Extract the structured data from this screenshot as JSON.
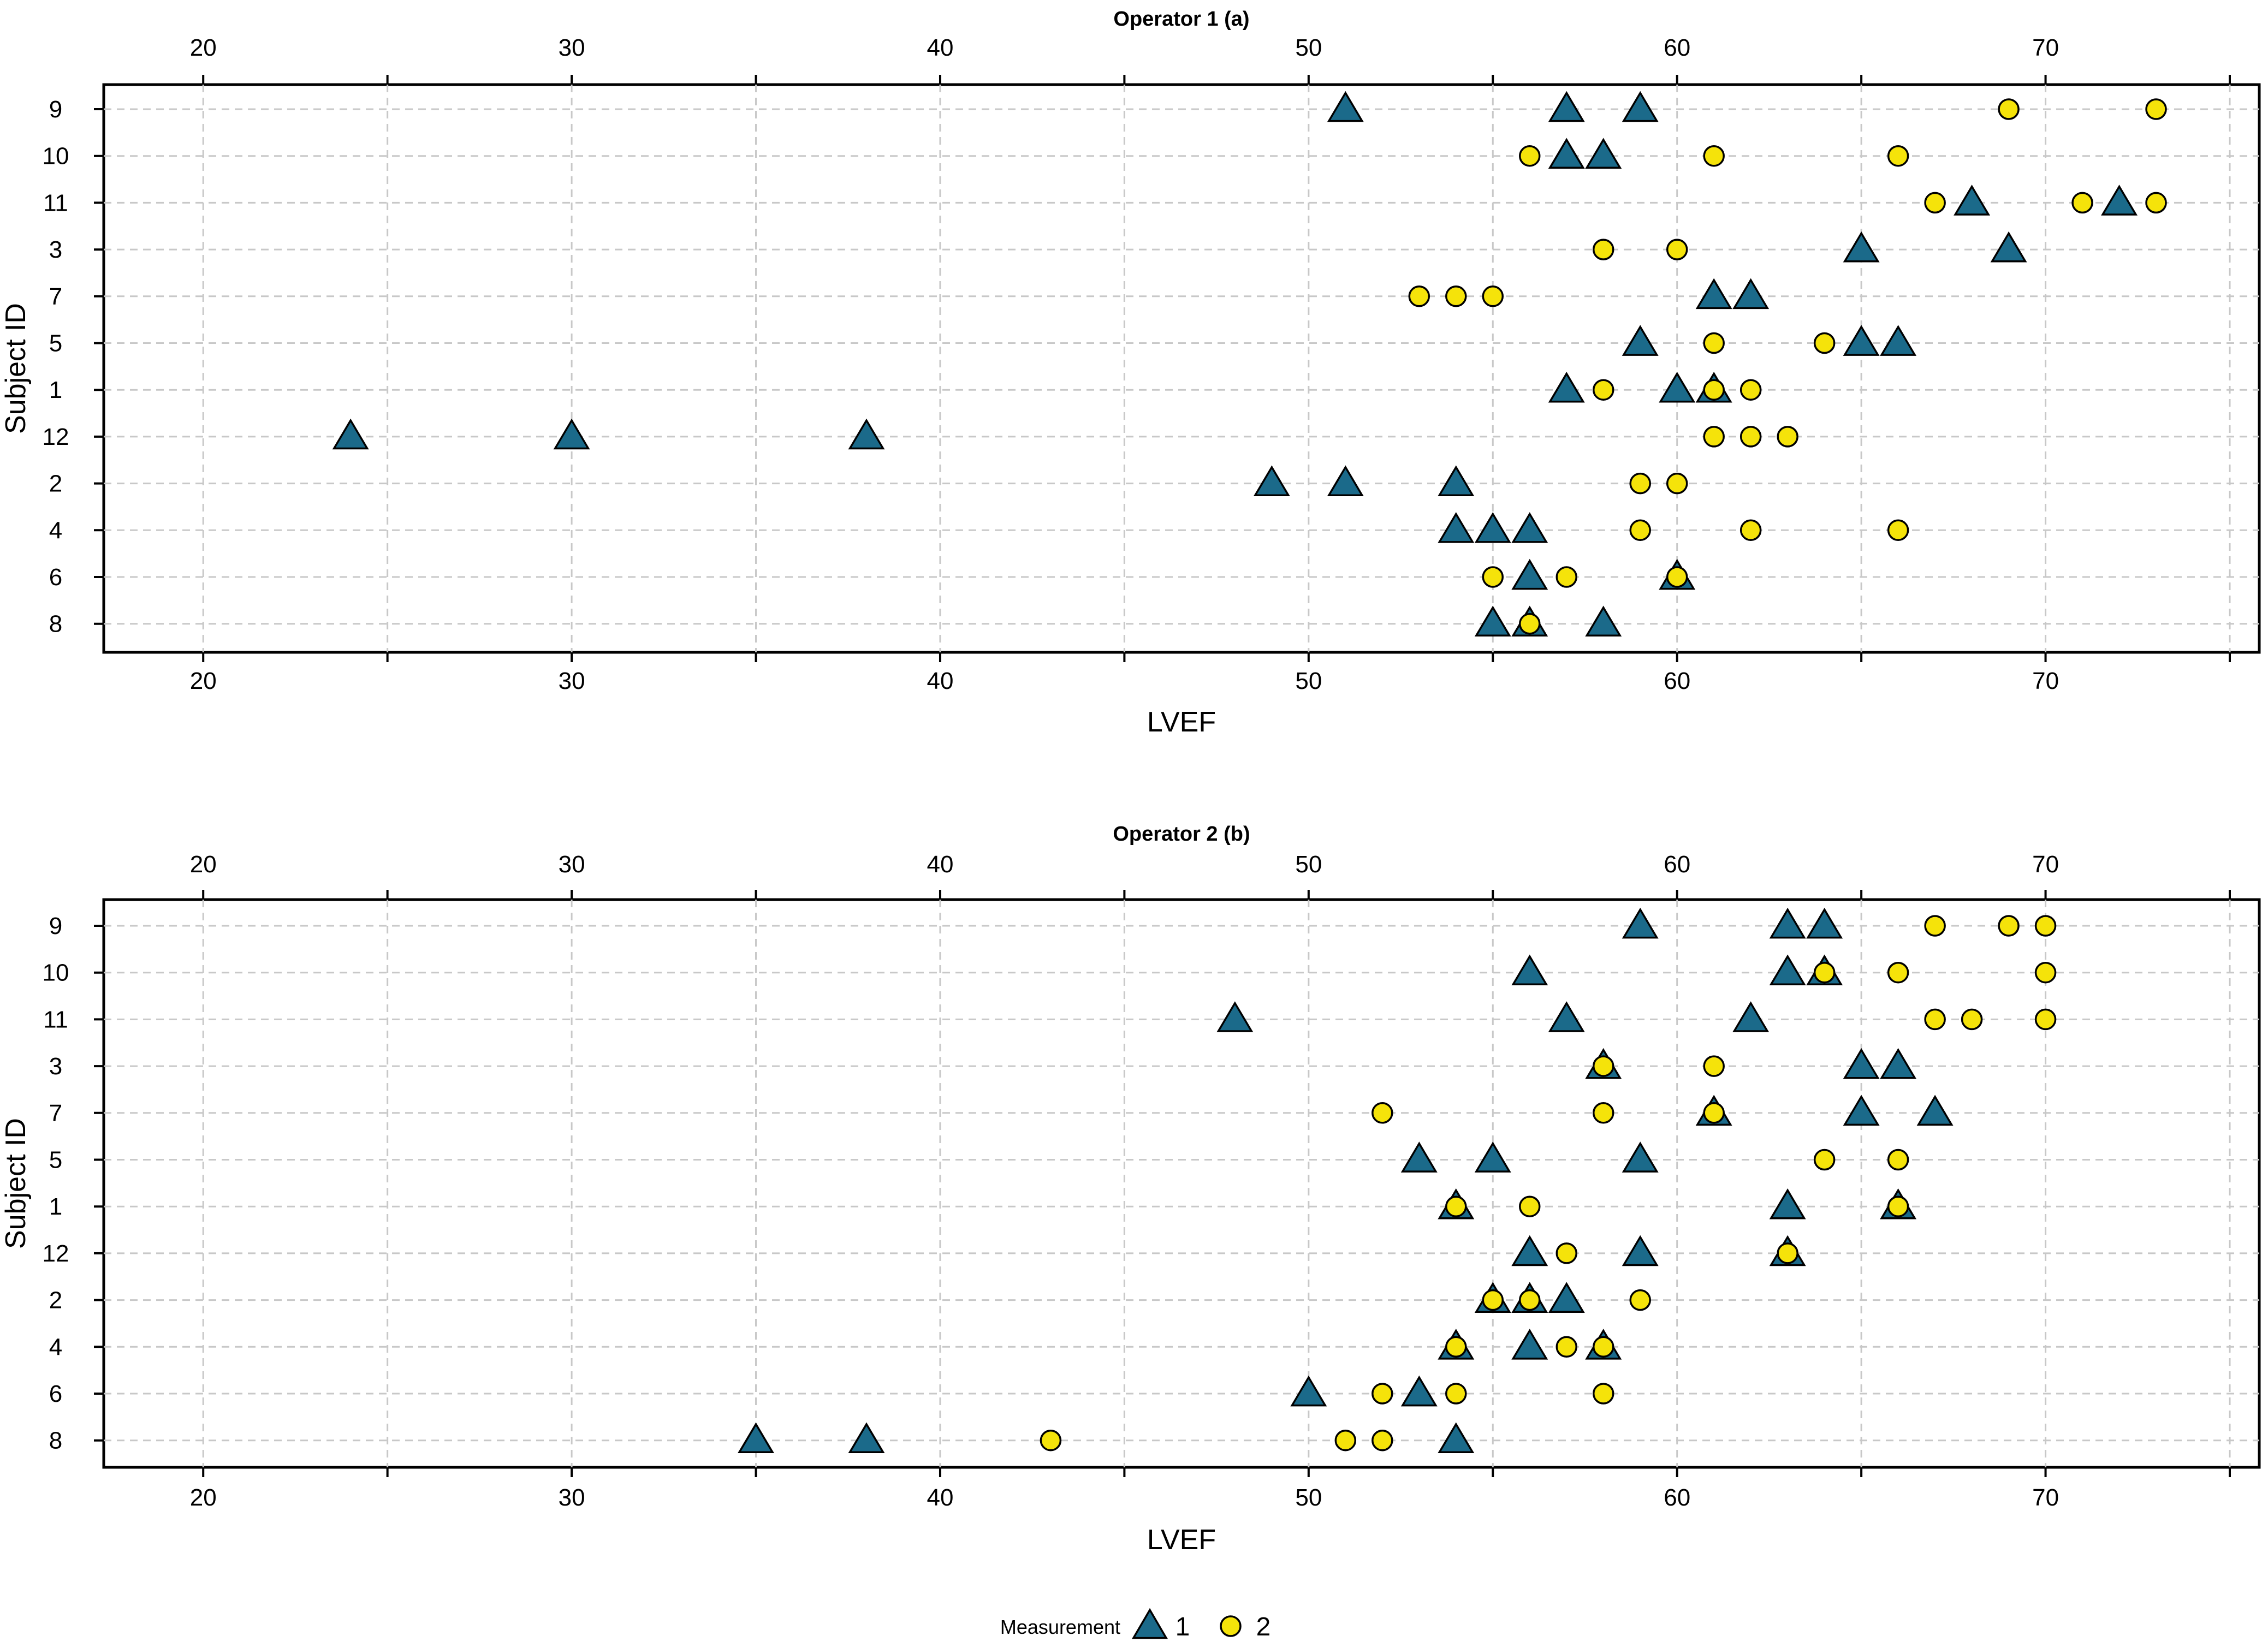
{
  "colors": {
    "measurement_1": "#1b6a8a",
    "measurement_2": "#f5e30a"
  },
  "legend": {
    "title": "Measurement",
    "items": [
      {
        "label": "1",
        "marker": "triangle",
        "color": "#1b6a8a"
      },
      {
        "label": "2",
        "marker": "circle",
        "color": "#f5e30a"
      }
    ]
  },
  "chart_data": [
    {
      "type": "scatter",
      "title": "Operator 1 (a)",
      "xlabel": "LVEF",
      "ylabel": "Subject ID",
      "xlim": [
        17.3,
        75.8
      ],
      "xticks": [
        "20",
        "30",
        "40",
        "50",
        "60",
        "70"
      ],
      "xticks_unlabeled": [
        25,
        35,
        45,
        55,
        65,
        75
      ],
      "categories": [
        "9",
        "10",
        "11",
        "3",
        "7",
        "5",
        "1",
        "12",
        "2",
        "4",
        "6",
        "8"
      ],
      "grid": true,
      "series": [
        {
          "name": "1",
          "marker": "triangle",
          "points": [
            {
              "subject": "9",
              "lvef": [
                51,
                57,
                59
              ]
            },
            {
              "subject": "10",
              "lvef": [
                57,
                58
              ]
            },
            {
              "subject": "11",
              "lvef": [
                68,
                72
              ]
            },
            {
              "subject": "3",
              "lvef": [
                65,
                69
              ]
            },
            {
              "subject": "7",
              "lvef": [
                61,
                62
              ]
            },
            {
              "subject": "5",
              "lvef": [
                59,
                65,
                66
              ]
            },
            {
              "subject": "1",
              "lvef": [
                57,
                60,
                61
              ]
            },
            {
              "subject": "12",
              "lvef": [
                24,
                30,
                38
              ]
            },
            {
              "subject": "2",
              "lvef": [
                49,
                51,
                54
              ]
            },
            {
              "subject": "4",
              "lvef": [
                54,
                55,
                56
              ]
            },
            {
              "subject": "6",
              "lvef": [
                56,
                60
              ]
            },
            {
              "subject": "8",
              "lvef": [
                55,
                56,
                58
              ]
            }
          ]
        },
        {
          "name": "2",
          "marker": "circle",
          "points": [
            {
              "subject": "9",
              "lvef": [
                69,
                73
              ]
            },
            {
              "subject": "10",
              "lvef": [
                56,
                61,
                66
              ]
            },
            {
              "subject": "11",
              "lvef": [
                67,
                71,
                73
              ]
            },
            {
              "subject": "3",
              "lvef": [
                58,
                60
              ]
            },
            {
              "subject": "7",
              "lvef": [
                53,
                54,
                55
              ]
            },
            {
              "subject": "5",
              "lvef": [
                61,
                64
              ]
            },
            {
              "subject": "1",
              "lvef": [
                58,
                61,
                62
              ]
            },
            {
              "subject": "12",
              "lvef": [
                61,
                62,
                63
              ]
            },
            {
              "subject": "2",
              "lvef": [
                59,
                60
              ]
            },
            {
              "subject": "4",
              "lvef": [
                59,
                62,
                66
              ]
            },
            {
              "subject": "6",
              "lvef": [
                55,
                57,
                60
              ]
            },
            {
              "subject": "8",
              "lvef": [
                56
              ]
            }
          ]
        }
      ]
    },
    {
      "type": "scatter",
      "title": "Operator 2 (b)",
      "xlabel": "LVEF",
      "ylabel": "Subject ID",
      "xlim": [
        17.3,
        75.8
      ],
      "xticks": [
        "20",
        "30",
        "40",
        "50",
        "60",
        "70"
      ],
      "xticks_unlabeled": [
        25,
        35,
        45,
        55,
        65,
        75
      ],
      "categories": [
        "9",
        "10",
        "11",
        "3",
        "7",
        "5",
        "1",
        "12",
        "2",
        "4",
        "6",
        "8"
      ],
      "grid": true,
      "series": [
        {
          "name": "1",
          "marker": "triangle",
          "points": [
            {
              "subject": "9",
              "lvef": [
                59,
                63,
                64
              ]
            },
            {
              "subject": "10",
              "lvef": [
                56,
                63,
                64
              ]
            },
            {
              "subject": "11",
              "lvef": [
                48,
                57,
                62
              ]
            },
            {
              "subject": "3",
              "lvef": [
                58,
                65,
                66
              ]
            },
            {
              "subject": "7",
              "lvef": [
                61,
                65,
                67
              ]
            },
            {
              "subject": "5",
              "lvef": [
                53,
                55,
                59
              ]
            },
            {
              "subject": "1",
              "lvef": [
                54,
                63,
                66
              ]
            },
            {
              "subject": "12",
              "lvef": [
                56,
                59,
                63
              ]
            },
            {
              "subject": "2",
              "lvef": [
                55,
                56,
                57
              ]
            },
            {
              "subject": "4",
              "lvef": [
                54,
                56,
                58
              ]
            },
            {
              "subject": "6",
              "lvef": [
                50,
                53
              ]
            },
            {
              "subject": "8",
              "lvef": [
                35,
                38,
                54
              ]
            }
          ]
        },
        {
          "name": "2",
          "marker": "circle",
          "points": [
            {
              "subject": "9",
              "lvef": [
                67,
                69,
                70
              ]
            },
            {
              "subject": "10",
              "lvef": [
                64,
                66,
                70
              ]
            },
            {
              "subject": "11",
              "lvef": [
                67,
                68,
                70
              ]
            },
            {
              "subject": "3",
              "lvef": [
                58,
                61
              ]
            },
            {
              "subject": "7",
              "lvef": [
                52,
                58,
                61
              ]
            },
            {
              "subject": "5",
              "lvef": [
                64,
                66
              ]
            },
            {
              "subject": "1",
              "lvef": [
                54,
                56,
                66
              ]
            },
            {
              "subject": "12",
              "lvef": [
                57,
                63
              ]
            },
            {
              "subject": "2",
              "lvef": [
                55,
                56,
                59
              ]
            },
            {
              "subject": "4",
              "lvef": [
                54,
                57,
                58
              ]
            },
            {
              "subject": "6",
              "lvef": [
                52,
                54,
                58
              ]
            },
            {
              "subject": "8",
              "lvef": [
                43,
                51,
                52
              ]
            }
          ]
        }
      ]
    }
  ]
}
